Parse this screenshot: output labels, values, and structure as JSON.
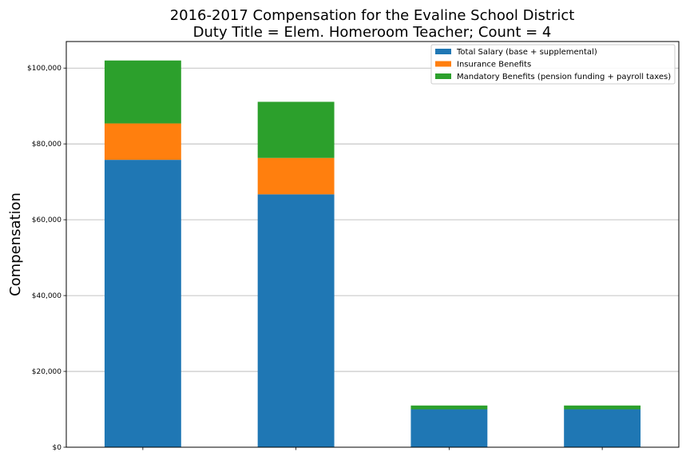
{
  "chart_data": {
    "type": "bar",
    "stacked": true,
    "title": "2016-2017 Compensation for the Evaline School District",
    "subtitle": "Duty Title = Elem. Homeroom Teacher; Count = 4",
    "xlabel": "",
    "ylabel": "Compensation",
    "categories": [
      "",
      "",
      "",
      ""
    ],
    "ylim": [
      0,
      107000
    ],
    "yticks": [
      0,
      20000,
      40000,
      60000,
      80000,
      100000
    ],
    "ytick_labels": [
      "$0",
      "$20,000",
      "$40,000",
      "$60,000",
      "$80,000",
      "$100,000"
    ],
    "grid": "y",
    "legend_position": "top-right",
    "series": [
      {
        "name": "Total Salary (base + supplemental)",
        "color": "#1f77b4",
        "values": [
          75800,
          66700,
          10000,
          10000
        ]
      },
      {
        "name": "Insurance Benefits",
        "color": "#ff7f0e",
        "values": [
          9600,
          9600,
          0,
          0
        ]
      },
      {
        "name": "Mandatory Benefits (pension funding + payroll taxes)",
        "color": "#2ca02c",
        "values": [
          16600,
          14800,
          1000,
          1000
        ]
      }
    ]
  }
}
